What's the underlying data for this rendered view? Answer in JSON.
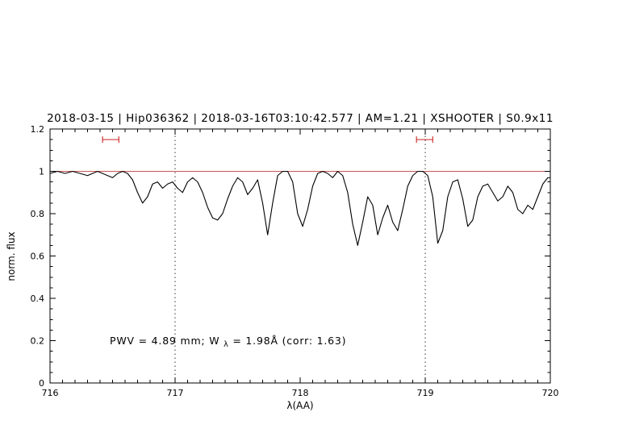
{
  "header": {
    "title": "2018-03-15 | Hip036362 | 2018-03-16T03:10:42.577 | AM=1.21 | XSHOOTER | S0.9x11"
  },
  "annotation": {
    "prefix": "PWV = 4.89 mm; W",
    "sub": "λ",
    "suffix": " = 1.98Å (corr: 1.63)"
  },
  "colors": {
    "title": "#0000cd",
    "annotation": "#0000cd",
    "spectrum": "#000000",
    "continuum": "#cc5555",
    "marker": "#cc2222",
    "dotted": "#333333",
    "frame": "#000000"
  },
  "chart_data": {
    "type": "line",
    "title": "2018-03-15 | Hip036362 | 2018-03-16T03:10:42.577 | AM=1.21 | XSHOOTER | S0.9x11",
    "xlabel": "λ(AA)",
    "ylabel": "norm. flux",
    "xlim": [
      716,
      720
    ],
    "ylim": [
      0,
      1.2
    ],
    "x_ticks": [
      716,
      717,
      718,
      719,
      720
    ],
    "y_ticks": [
      0,
      0.2,
      0.4,
      0.6,
      0.8,
      1,
      1.2
    ],
    "y_tick_labels": [
      "0",
      "0.2",
      "0.4",
      "0.6",
      "0.8",
      "1",
      "1.2"
    ],
    "grid": false,
    "continuum_y": 1.0,
    "dotted_vlines": [
      717,
      719
    ],
    "range_markers": [
      {
        "x1": 716.42,
        "x2": 716.55,
        "y": 1.15
      },
      {
        "x1": 718.93,
        "x2": 719.06,
        "y": 1.15
      }
    ],
    "x": [
      716.0,
      716.06,
      716.12,
      716.18,
      716.24,
      716.3,
      716.34,
      716.38,
      716.42,
      716.46,
      716.5,
      716.54,
      716.58,
      716.62,
      716.66,
      716.7,
      716.74,
      716.78,
      716.82,
      716.86,
      716.9,
      716.94,
      716.98,
      717.02,
      717.06,
      717.1,
      717.14,
      717.18,
      717.22,
      717.26,
      717.3,
      717.34,
      717.38,
      717.42,
      717.46,
      717.5,
      717.54,
      717.58,
      717.62,
      717.66,
      717.7,
      717.74,
      717.78,
      717.82,
      717.86,
      717.9,
      717.94,
      717.98,
      718.02,
      718.06,
      718.1,
      718.14,
      718.18,
      718.22,
      718.26,
      718.3,
      718.34,
      718.38,
      718.42,
      718.46,
      718.5,
      718.54,
      718.58,
      718.62,
      718.66,
      718.7,
      718.74,
      718.78,
      718.82,
      718.86,
      718.9,
      718.94,
      718.98,
      719.02,
      719.06,
      719.1,
      719.14,
      719.18,
      719.22,
      719.26,
      719.3,
      719.34,
      719.38,
      719.42,
      719.46,
      719.5,
      719.54,
      719.58,
      719.62,
      719.66,
      719.7,
      719.74,
      719.78,
      719.82,
      719.86,
      719.9,
      719.94,
      719.98,
      720.0
    ],
    "y": [
      0.99,
      1.0,
      0.99,
      1.0,
      0.99,
      0.98,
      0.99,
      1.0,
      0.99,
      0.98,
      0.97,
      0.99,
      1.0,
      0.99,
      0.96,
      0.9,
      0.85,
      0.88,
      0.94,
      0.95,
      0.92,
      0.94,
      0.95,
      0.92,
      0.9,
      0.95,
      0.97,
      0.95,
      0.9,
      0.83,
      0.78,
      0.77,
      0.8,
      0.87,
      0.93,
      0.97,
      0.95,
      0.89,
      0.92,
      0.96,
      0.85,
      0.7,
      0.85,
      0.98,
      1.0,
      1.0,
      0.95,
      0.8,
      0.74,
      0.82,
      0.93,
      0.99,
      1.0,
      0.99,
      0.97,
      1.0,
      0.98,
      0.9,
      0.75,
      0.65,
      0.76,
      0.88,
      0.84,
      0.7,
      0.78,
      0.84,
      0.76,
      0.72,
      0.82,
      0.93,
      0.98,
      1.0,
      1.0,
      0.98,
      0.88,
      0.66,
      0.72,
      0.88,
      0.95,
      0.96,
      0.87,
      0.74,
      0.77,
      0.88,
      0.93,
      0.94,
      0.9,
      0.86,
      0.88,
      0.93,
      0.9,
      0.82,
      0.8,
      0.84,
      0.82,
      0.88,
      0.94,
      0.97,
      0.97
    ]
  }
}
